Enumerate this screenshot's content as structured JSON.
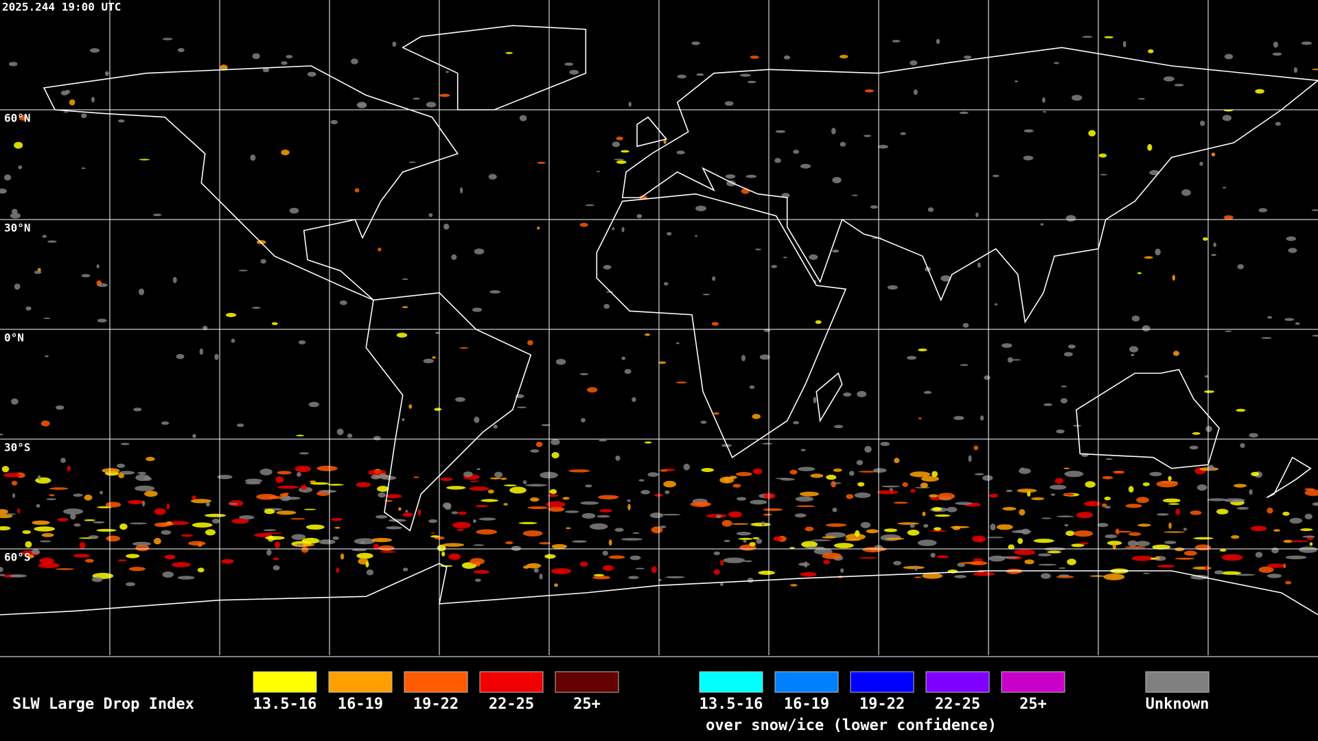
{
  "header": {
    "timestamp": "2025.244 19:00 UTC"
  },
  "map": {
    "latitude_labels": [
      "60°N",
      "30°N",
      "0°N",
      "30°S",
      "60°S"
    ]
  },
  "legend": {
    "title": "SLW Large Drop Index",
    "groups": [
      {
        "items": [
          {
            "label": "13.5-16",
            "color": "#ffff00"
          },
          {
            "label": "16-19",
            "color": "#ffa000"
          },
          {
            "label": "19-22",
            "color": "#ff5a00"
          },
          {
            "label": "22-25",
            "color": "#f00000"
          },
          {
            "label": "25+",
            "color": "#640000"
          }
        ]
      },
      {
        "items": [
          {
            "label": "13.5-16",
            "color": "#00ffff"
          },
          {
            "label": "16-19",
            "color": "#0080ff"
          },
          {
            "label": "19-22",
            "color": "#0000ff"
          },
          {
            "label": "22-25",
            "color": "#8000ff"
          },
          {
            "label": "25+",
            "color": "#c800c8"
          }
        ],
        "note": "over snow/ice (lower confidence)"
      }
    ],
    "unknown": {
      "label": "Unknown",
      "color": "#808080"
    }
  }
}
